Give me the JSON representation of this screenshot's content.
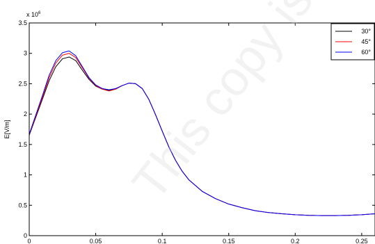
{
  "chart_data": {
    "type": "line",
    "title": "",
    "xlabel": "",
    "ylabel": "E[V/m]",
    "y_multiplier": "x 10^6",
    "y_multiplier_base": "x 10",
    "y_multiplier_exp": "6",
    "xlim": [
      0,
      0.26
    ],
    "ylim": [
      0,
      3500000
    ],
    "x_ticks": [
      0,
      0.05,
      0.1,
      0.15,
      0.2,
      0.25
    ],
    "x_tick_labels": [
      "0",
      "0.05",
      "0.1",
      "0.15",
      "0.2",
      "0.25"
    ],
    "y_ticks": [
      0,
      500000,
      1000000,
      1500000,
      2000000,
      2500000,
      3000000,
      3500000
    ],
    "y_tick_labels": [
      "0",
      "0.5",
      "1",
      "1.5",
      "2",
      "2.5",
      "3",
      "3.5"
    ],
    "grid": false,
    "legend_position": "top-right",
    "watermark": "This copy is",
    "series": [
      {
        "name": "30°",
        "color": "#000000",
        "x": [
          0,
          0.005,
          0.01,
          0.015,
          0.02,
          0.025,
          0.03,
          0.035,
          0.04,
          0.045,
          0.05,
          0.055,
          0.06,
          0.065,
          0.07,
          0.075,
          0.08,
          0.085,
          0.09,
          0.095,
          0.1,
          0.105,
          0.11,
          0.115,
          0.12,
          0.13,
          0.14,
          0.15,
          0.16,
          0.17,
          0.18,
          0.19,
          0.2,
          0.21,
          0.22,
          0.23,
          0.24,
          0.25,
          0.26
        ],
        "y": [
          1650000,
          1950000,
          2250000,
          2550000,
          2780000,
          2910000,
          2940000,
          2880000,
          2720000,
          2570000,
          2460000,
          2410000,
          2390000,
          2420000,
          2470000,
          2510000,
          2500000,
          2420000,
          2240000,
          1990000,
          1720000,
          1460000,
          1240000,
          1060000,
          920000,
          730000,
          610000,
          520000,
          460000,
          410000,
          380000,
          360000,
          345000,
          335000,
          330000,
          330000,
          335000,
          345000,
          360000
        ]
      },
      {
        "name": "45°",
        "color": "#ff0000",
        "x": [
          0,
          0.005,
          0.01,
          0.015,
          0.02,
          0.025,
          0.03,
          0.035,
          0.04,
          0.045,
          0.05,
          0.055,
          0.06,
          0.065,
          0.07,
          0.075,
          0.08,
          0.085,
          0.09,
          0.095,
          0.1,
          0.105,
          0.11,
          0.115,
          0.12,
          0.13,
          0.14,
          0.15,
          0.16,
          0.17,
          0.18,
          0.19,
          0.2,
          0.21,
          0.22,
          0.23,
          0.24,
          0.25,
          0.26
        ],
        "y": [
          1660000,
          1970000,
          2280000,
          2600000,
          2840000,
          2970000,
          3000000,
          2930000,
          2760000,
          2590000,
          2470000,
          2410000,
          2380000,
          2410000,
          2470000,
          2510000,
          2500000,
          2420000,
          2240000,
          1990000,
          1720000,
          1460000,
          1240000,
          1060000,
          920000,
          730000,
          610000,
          520000,
          460000,
          410000,
          380000,
          360000,
          345000,
          335000,
          330000,
          330000,
          335000,
          345000,
          360000
        ]
      },
      {
        "name": "60°",
        "color": "#0000ff",
        "x": [
          0,
          0.005,
          0.01,
          0.015,
          0.02,
          0.025,
          0.03,
          0.035,
          0.04,
          0.045,
          0.05,
          0.055,
          0.06,
          0.065,
          0.07,
          0.075,
          0.08,
          0.085,
          0.09,
          0.095,
          0.1,
          0.105,
          0.11,
          0.115,
          0.12,
          0.13,
          0.14,
          0.15,
          0.16,
          0.17,
          0.18,
          0.19,
          0.2,
          0.21,
          0.22,
          0.23,
          0.24,
          0.25,
          0.26
        ],
        "y": [
          1670000,
          1990000,
          2310000,
          2640000,
          2880000,
          3010000,
          3040000,
          2960000,
          2780000,
          2600000,
          2480000,
          2420000,
          2400000,
          2420000,
          2470000,
          2510000,
          2500000,
          2420000,
          2240000,
          1990000,
          1720000,
          1460000,
          1240000,
          1060000,
          920000,
          730000,
          610000,
          520000,
          460000,
          410000,
          380000,
          360000,
          345000,
          335000,
          330000,
          330000,
          335000,
          345000,
          360000
        ]
      }
    ]
  }
}
